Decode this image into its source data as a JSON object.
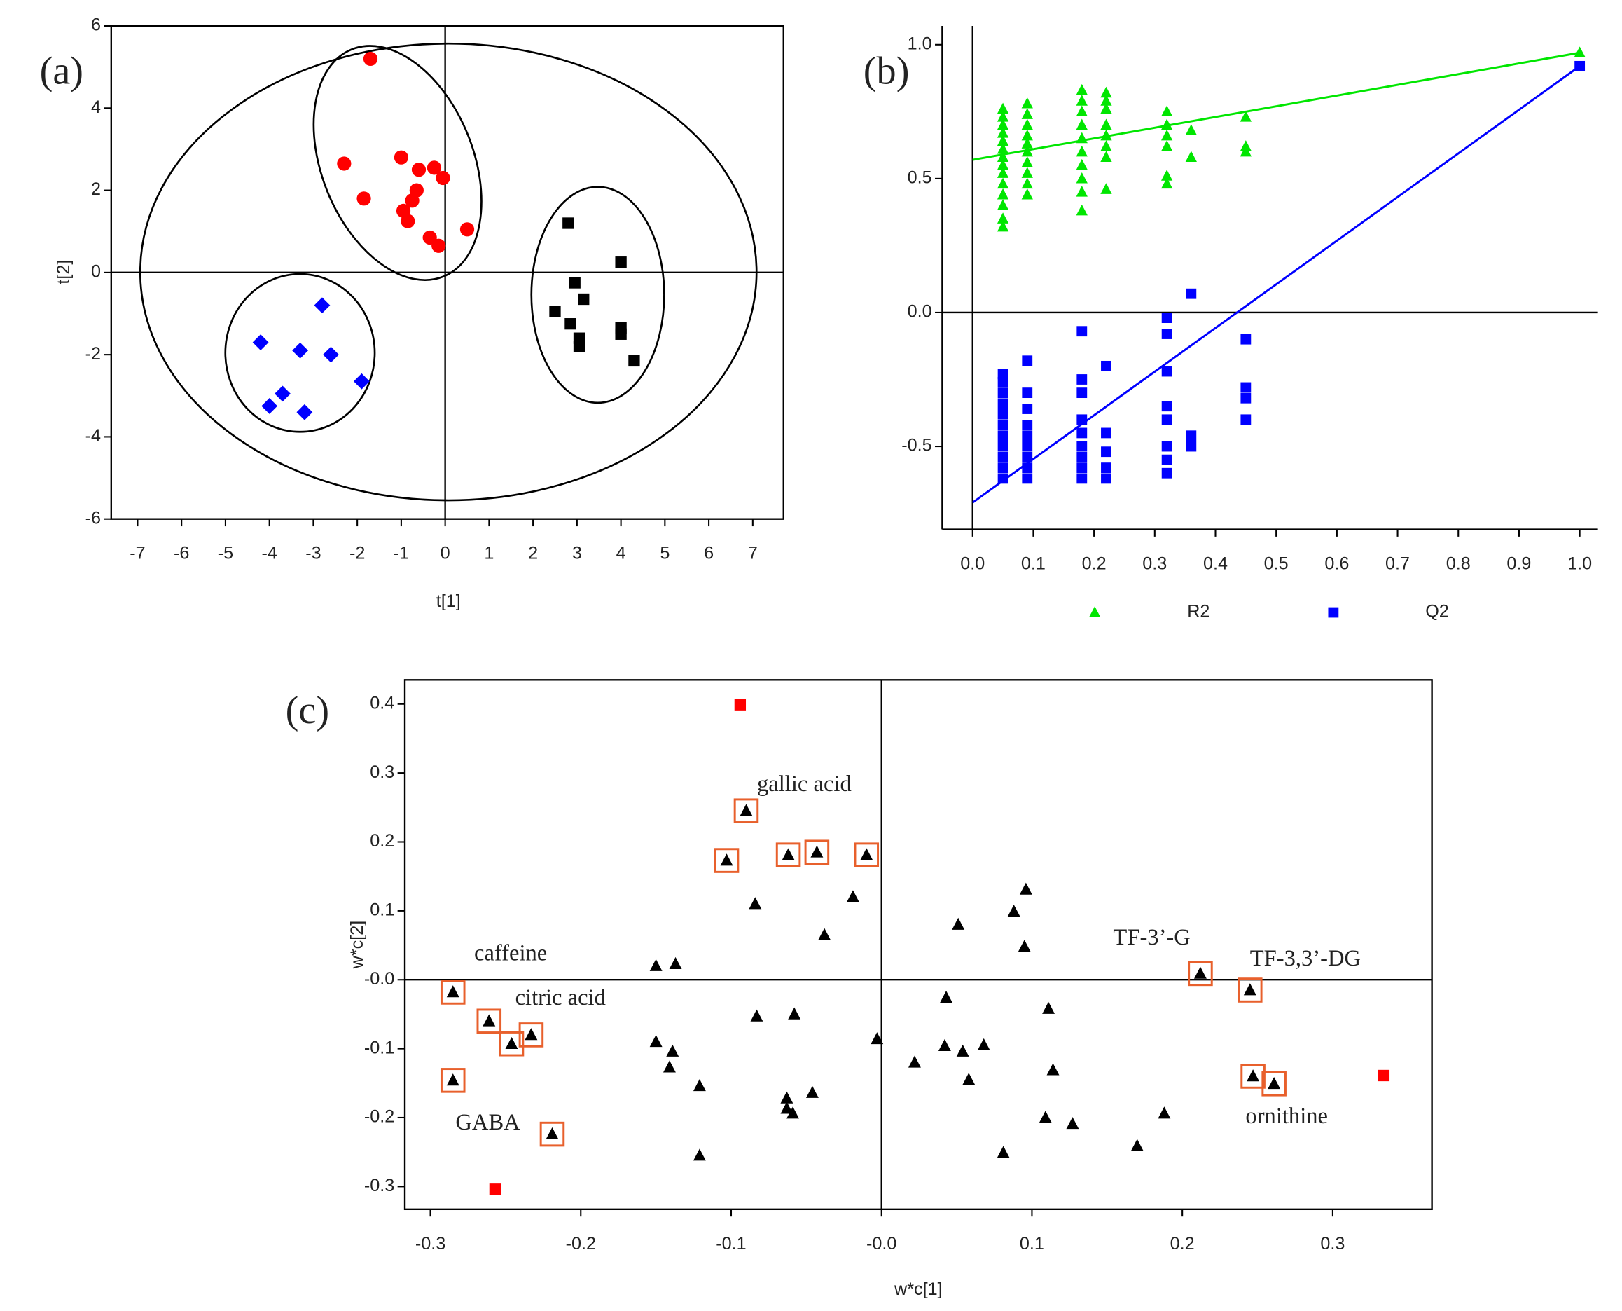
{
  "chart_data": [
    {
      "type": "scatter",
      "label": "(a)",
      "xlabel": "t[1]",
      "ylabel": "t[2]",
      "xlim": [
        -7.6,
        7.7
      ],
      "ylim": [
        -6,
        6
      ],
      "xticks": [
        -7,
        -6,
        -5,
        -4,
        -3,
        -2,
        -1,
        0,
        1,
        2,
        3,
        4,
        5,
        6,
        7
      ],
      "yticks": [
        -6,
        -4,
        -2,
        0,
        2,
        4,
        6
      ],
      "series": [
        {
          "color": "#ff0000",
          "marker": "circle",
          "x": [
            -1.7,
            -2.3,
            -1.85,
            -1.0,
            -0.6,
            -0.25,
            -0.05,
            -0.65,
            -0.75,
            -0.95,
            -0.85,
            0.5,
            -0.35,
            -0.15
          ],
          "values": [
            5.2,
            2.65,
            1.8,
            2.8,
            2.5,
            2.55,
            2.3,
            2.0,
            1.75,
            1.5,
            1.25,
            1.05,
            0.85,
            0.65
          ]
        },
        {
          "color": "#0000ff",
          "marker": "diamond",
          "x": [
            -2.8,
            -4.2,
            -3.3,
            -2.6,
            -1.9,
            -3.7,
            -4.0,
            -3.2
          ],
          "values": [
            -0.8,
            -1.7,
            -1.9,
            -2.0,
            -2.65,
            -2.95,
            -3.25,
            -3.4
          ]
        },
        {
          "color": "#000000",
          "marker": "square",
          "x": [
            2.8,
            4.0,
            2.95,
            3.15,
            2.5,
            2.85,
            3.05,
            3.05,
            4.0,
            4.0,
            4.3
          ],
          "values": [
            1.2,
            0.25,
            -0.25,
            -0.65,
            -0.95,
            -1.25,
            -1.6,
            -1.8,
            -1.35,
            -1.5,
            -2.15
          ]
        }
      ]
    },
    {
      "type": "scatter",
      "label": "(b)",
      "xlim": [
        -0.05,
        1.03
      ],
      "ylim": [
        -0.81,
        1.07
      ],
      "xticks": [
        {
          "value": 0,
          "label": "0.0"
        },
        0.1,
        0.2,
        0.3,
        0.4,
        0.5,
        0.6,
        0.7,
        0.8,
        0.9,
        {
          "value": 1,
          "label": "1.0"
        }
      ],
      "yticks": [
        -0.5,
        {
          "value": 0,
          "label": "0.0"
        },
        0.5,
        {
          "value": 1,
          "label": "1.0"
        }
      ],
      "legend": "bottom",
      "series": [
        {
          "name": "R2",
          "color": "#00e600",
          "marker": "triangle",
          "x": [
            0.05,
            0.05,
            0.05,
            0.05,
            0.05,
            0.05,
            0.05,
            0.05,
            0.05,
            0.05,
            0.05,
            0.05,
            0.05,
            0.05,
            0.09,
            0.09,
            0.09,
            0.09,
            0.09,
            0.09,
            0.09,
            0.09,
            0.09,
            0.09,
            0.18,
            0.18,
            0.18,
            0.18,
            0.18,
            0.18,
            0.18,
            0.18,
            0.18,
            0.18,
            0.22,
            0.22,
            0.22,
            0.22,
            0.22,
            0.22,
            0.22,
            0.22,
            0.32,
            0.32,
            0.32,
            0.32,
            0.32,
            0.32,
            0.36,
            0.36,
            0.45,
            0.45,
            0.45,
            1.0
          ],
          "values": [
            0.32,
            0.35,
            0.4,
            0.44,
            0.48,
            0.52,
            0.55,
            0.58,
            0.61,
            0.64,
            0.67,
            0.7,
            0.73,
            0.76,
            0.44,
            0.48,
            0.52,
            0.56,
            0.6,
            0.63,
            0.66,
            0.7,
            0.74,
            0.78,
            0.38,
            0.45,
            0.5,
            0.55,
            0.6,
            0.65,
            0.7,
            0.75,
            0.79,
            0.83,
            0.46,
            0.58,
            0.62,
            0.66,
            0.7,
            0.76,
            0.79,
            0.82,
            0.48,
            0.51,
            0.62,
            0.66,
            0.7,
            0.75,
            0.58,
            0.68,
            0.6,
            0.62,
            0.73,
            0.97
          ],
          "line": {
            "x": [
              0,
              1.0
            ],
            "values": [
              0.57,
              0.97
            ]
          }
        },
        {
          "name": "Q2",
          "color": "#0000ff",
          "marker": "square",
          "x": [
            0.05,
            0.05,
            0.05,
            0.05,
            0.05,
            0.05,
            0.05,
            0.05,
            0.05,
            0.05,
            0.05,
            0.09,
            0.09,
            0.09,
            0.09,
            0.09,
            0.09,
            0.09,
            0.09,
            0.09,
            0.18,
            0.18,
            0.18,
            0.18,
            0.18,
            0.18,
            0.18,
            0.18,
            0.18,
            0.22,
            0.22,
            0.22,
            0.22,
            0.22,
            0.32,
            0.32,
            0.32,
            0.32,
            0.32,
            0.32,
            0.32,
            0.32,
            0.36,
            0.36,
            0.36,
            0.45,
            0.45,
            0.45,
            0.45,
            1.0
          ],
          "values": [
            -0.62,
            -0.58,
            -0.54,
            -0.5,
            -0.46,
            -0.42,
            -0.38,
            -0.34,
            -0.3,
            -0.26,
            -0.23,
            -0.62,
            -0.58,
            -0.54,
            -0.5,
            -0.46,
            -0.42,
            -0.36,
            -0.3,
            -0.18,
            -0.62,
            -0.58,
            -0.54,
            -0.5,
            -0.45,
            -0.4,
            -0.3,
            -0.25,
            -0.07,
            -0.62,
            -0.58,
            -0.52,
            -0.45,
            -0.2,
            -0.6,
            -0.55,
            -0.5,
            -0.4,
            -0.35,
            -0.22,
            -0.08,
            -0.02,
            -0.5,
            -0.46,
            0.07,
            -0.4,
            -0.32,
            -0.28,
            -0.1,
            0.92
          ],
          "line": {
            "x": [
              0,
              1.0
            ],
            "values": [
              -0.71,
              0.92
            ]
          }
        }
      ]
    },
    {
      "type": "scatter",
      "label": "(c)",
      "xlabel": "w*c[1]",
      "ylabel": "w*c[2]",
      "xlim": [
        -0.317,
        0.366
      ],
      "ylim": [
        -0.333,
        0.435
      ],
      "xticks": [
        -0.3,
        -0.2,
        -0.1,
        {
          "value": 0,
          "label": "-0.0"
        },
        0.1,
        0.2,
        0.3
      ],
      "yticks": [
        -0.3,
        -0.2,
        -0.1,
        {
          "value": 0,
          "label": "-0.0"
        },
        0.1,
        0.2,
        0.3,
        0.4
      ],
      "annotations": [
        "gallic acid",
        "caffeine",
        "citric acid",
        "GABA",
        "TF-3’-G",
        "TF-3,3’-DG",
        "ornithine"
      ],
      "series": [
        {
          "color": "#000000",
          "marker": "triangle",
          "box_color": "#e8602c",
          "x": [
            -0.09,
            -0.103,
            -0.062,
            -0.043,
            -0.01,
            -0.285,
            -0.261,
            -0.246,
            -0.233,
            -0.285,
            -0.219,
            0.212,
            0.245,
            0.247,
            0.261
          ],
          "values": [
            0.245,
            0.173,
            0.181,
            0.185,
            0.181,
            -0.018,
            -0.06,
            -0.093,
            -0.08,
            -0.146,
            -0.224,
            0.009,
            -0.015,
            -0.14,
            -0.151
          ]
        },
        {
          "color": "#000000",
          "marker": "triangle",
          "x": [
            -0.084,
            -0.019,
            -0.038,
            -0.15,
            -0.137,
            -0.15,
            -0.139,
            -0.141,
            -0.121,
            -0.121,
            -0.083,
            -0.058,
            -0.046,
            -0.063,
            -0.063,
            -0.059,
            -0.003,
            0.051,
            0.088,
            0.096,
            0.095,
            0.043,
            0.022,
            0.042,
            0.054,
            0.068,
            0.058,
            0.111,
            0.114,
            0.109,
            0.127,
            0.081,
            0.188,
            0.17
          ],
          "values": [
            0.11,
            0.12,
            0.065,
            0.02,
            0.023,
            -0.09,
            -0.104,
            -0.127,
            -0.154,
            -0.255,
            -0.053,
            -0.05,
            -0.164,
            -0.172,
            -0.187,
            -0.194,
            -0.086,
            0.08,
            0.099,
            0.131,
            0.048,
            -0.026,
            -0.12,
            -0.096,
            -0.104,
            -0.095,
            -0.145,
            -0.042,
            -0.131,
            -0.2,
            -0.209,
            -0.251,
            -0.194,
            -0.241
          ]
        },
        {
          "color": "#ff0000",
          "marker": "square",
          "x": [
            -0.094,
            -0.257,
            0.334
          ],
          "values": [
            0.399,
            -0.304,
            -0.139
          ]
        }
      ]
    }
  ]
}
